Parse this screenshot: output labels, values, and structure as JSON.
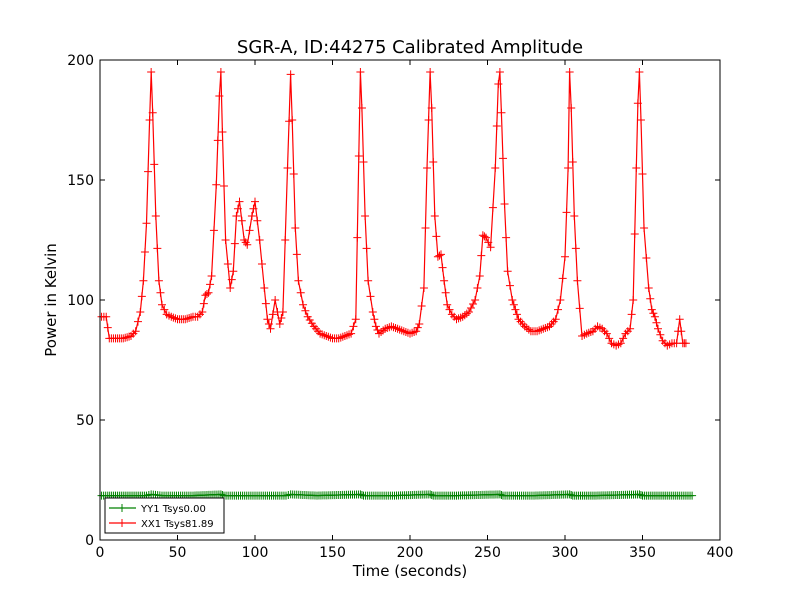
{
  "chart_data": {
    "type": "line",
    "title": "SGR-A, ID:44275 Calibrated Amplitude",
    "xlabel": "Time (seconds)",
    "ylabel": "Power in Kelvin",
    "xlim": [
      0,
      400
    ],
    "ylim": [
      0,
      200
    ],
    "xticks": [
      0,
      50,
      100,
      150,
      200,
      250,
      300,
      350,
      400
    ],
    "yticks": [
      0,
      50,
      100,
      150,
      200
    ],
    "grid": false,
    "legend_position": "lower-left",
    "series": [
      {
        "name": "YY1 Tsys0.00",
        "color": "#008000",
        "marker": "+",
        "x": [
          1,
          5,
          10,
          20,
          30,
          33,
          40,
          60,
          78,
          80,
          100,
          120,
          123,
          140,
          168,
          170,
          190,
          213,
          215,
          230,
          258,
          260,
          280,
          303,
          305,
          320,
          348,
          350,
          365,
          374,
          378,
          382
        ],
        "y": [
          18.5,
          18.5,
          18.5,
          18.5,
          18.5,
          19,
          18.5,
          18.5,
          19,
          18.5,
          18.5,
          18.5,
          19,
          18.5,
          19,
          18.5,
          18.5,
          19,
          18.5,
          18.5,
          19,
          18.5,
          18.5,
          19,
          18.5,
          18.5,
          19,
          18.5,
          18.5,
          18.5,
          18.5,
          18.5
        ]
      },
      {
        "name": "XX1 Tsys81.89",
        "color": "#ff0000",
        "marker": "+",
        "x": [
          1,
          4,
          6,
          10,
          15,
          20,
          23,
          26,
          28,
          30,
          32,
          33,
          34,
          36,
          38,
          40,
          43,
          46,
          50,
          55,
          60,
          63,
          66,
          68,
          70,
          72,
          75,
          77,
          78,
          79,
          81,
          84,
          86,
          88,
          90,
          93,
          95,
          98,
          100,
          103,
          106,
          108,
          110,
          113,
          116,
          118,
          121,
          123,
          124,
          126,
          128,
          131,
          134,
          138,
          142,
          146,
          150,
          154,
          158,
          162,
          165,
          167,
          168,
          169,
          171,
          173,
          176,
          178,
          180,
          184,
          188,
          192,
          196,
          200,
          204,
          206,
          209,
          211,
          213,
          214,
          216,
          218,
          220,
          222,
          224,
          227,
          230,
          234,
          238,
          242,
          245,
          247,
          249,
          252,
          255,
          257,
          258,
          259,
          261,
          263,
          266,
          268,
          270,
          274,
          278,
          282,
          286,
          290,
          294,
          297,
          300,
          302,
          303,
          304,
          306,
          308,
          311,
          314,
          318,
          321,
          324,
          327,
          330,
          333,
          336,
          339,
          342,
          344,
          346,
          347,
          348,
          349,
          351,
          354,
          356,
          358,
          360,
          363,
          366,
          369,
          372,
          374,
          376,
          378
        ],
        "y": [
          93,
          93,
          84,
          84,
          84,
          85,
          87,
          95,
          108,
          132,
          175,
          195,
          178,
          135,
          108,
          98,
          94,
          93,
          92,
          92,
          93,
          93,
          95,
          102,
          103,
          110,
          148,
          185,
          195,
          170,
          125,
          105,
          112,
          135,
          141,
          125,
          123,
          135,
          141,
          125,
          105,
          92,
          88,
          100,
          90,
          95,
          155,
          194,
          175,
          130,
          108,
          98,
          93,
          89,
          86,
          85,
          84,
          84,
          85,
          86,
          92,
          160,
          195,
          180,
          135,
          108,
          95,
          89,
          86,
          88,
          89,
          88,
          87,
          86,
          87,
          90,
          105,
          155,
          195,
          180,
          135,
          118,
          119,
          108,
          98,
          94,
          92,
          93,
          95,
          100,
          110,
          127,
          126,
          122,
          155,
          190,
          195,
          178,
          140,
          112,
          100,
          96,
          92,
          89,
          87,
          87,
          88,
          89,
          92,
          100,
          118,
          155,
          195,
          180,
          135,
          108,
          85,
          86,
          87,
          89,
          88,
          86,
          82,
          81,
          82,
          86,
          88,
          100,
          155,
          182,
          195,
          175,
          130,
          105,
          96,
          93,
          88,
          83,
          81,
          82,
          82,
          92,
          82,
          82
        ]
      }
    ]
  }
}
